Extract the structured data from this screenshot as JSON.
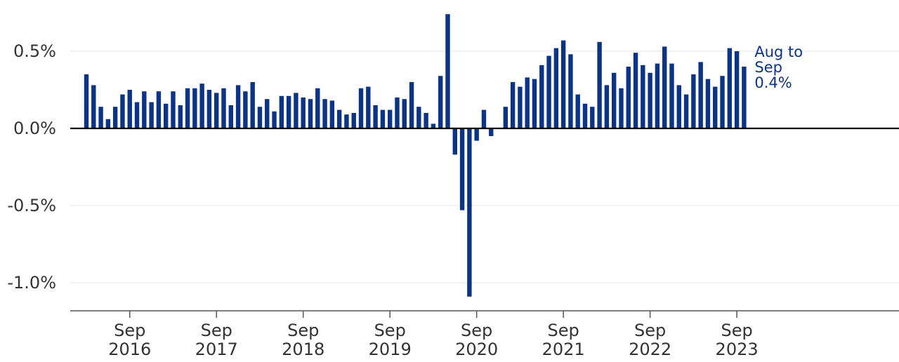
{
  "chart_data": {
    "type": "bar",
    "title": "",
    "xlabel": "",
    "ylabel": "",
    "ylim": [
      -1.18,
      0.75
    ],
    "bar_color": "#0b3486",
    "zero_line_color": "#000000",
    "grid": true,
    "y_ticks": [
      {
        "value": 0.5,
        "label": "0.5%"
      },
      {
        "value": 0.0,
        "label": "0.0%"
      },
      {
        "value": -0.5,
        "label": "-0.5%"
      },
      {
        "value": -1.0,
        "label": "-1.0%"
      }
    ],
    "x_ticks": [
      {
        "month": "Sep",
        "year": "2016",
        "index": 6
      },
      {
        "month": "Sep",
        "year": "2017",
        "index": 18
      },
      {
        "month": "Sep",
        "year": "2018",
        "index": 30
      },
      {
        "month": "Sep",
        "year": "2019",
        "index": 42
      },
      {
        "month": "Sep",
        "year": "2020",
        "index": 54
      },
      {
        "month": "Sep",
        "year": "2021",
        "index": 66
      },
      {
        "month": "Sep",
        "year": "2022",
        "index": 78
      },
      {
        "month": "Sep",
        "year": "2023",
        "index": 90
      }
    ],
    "first_period": "Mar 2016",
    "values": [
      0.35,
      0.28,
      0.14,
      0.06,
      0.14,
      0.22,
      0.25,
      0.17,
      0.24,
      0.17,
      0.24,
      0.16,
      0.24,
      0.15,
      0.26,
      0.26,
      0.29,
      0.25,
      0.23,
      0.26,
      0.15,
      0.28,
      0.24,
      0.3,
      0.14,
      0.19,
      0.11,
      0.21,
      0.21,
      0.23,
      0.2,
      0.19,
      0.26,
      0.19,
      0.18,
      0.12,
      0.09,
      0.1,
      0.26,
      0.27,
      0.15,
      0.12,
      0.12,
      0.2,
      0.19,
      0.3,
      0.14,
      0.1,
      0.03,
      0.34,
      0.74,
      -0.17,
      -0.53,
      -1.09,
      -0.08,
      0.12,
      -0.05,
      0.0,
      0.14,
      0.3,
      0.27,
      0.33,
      0.32,
      0.41,
      0.47,
      0.52,
      0.57,
      0.48,
      0.22,
      0.16,
      0.14,
      0.56,
      0.28,
      0.36,
      0.26,
      0.4,
      0.49,
      0.41,
      0.36,
      0.42,
      0.53,
      0.42,
      0.28,
      0.22,
      0.35,
      0.43,
      0.32,
      0.27,
      0.34,
      0.52,
      0.5,
      0.4
    ],
    "annotation": {
      "lines": [
        "Aug to",
        "Sep",
        "0.4%"
      ],
      "color": "#0b3486"
    }
  }
}
